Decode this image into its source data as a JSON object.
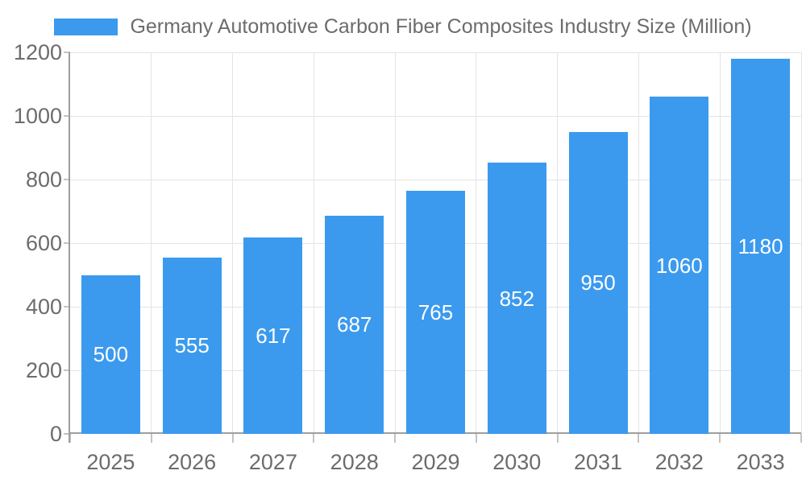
{
  "chart_data": {
    "type": "bar",
    "title": "Germany Automotive Carbon Fiber Composites Industry Size (Million)",
    "legend_position": "top-center",
    "categories": [
      "2025",
      "2026",
      "2027",
      "2028",
      "2029",
      "2030",
      "2031",
      "2032",
      "2033"
    ],
    "values": [
      500,
      555,
      617,
      687,
      765,
      852,
      950,
      1060,
      1180
    ],
    "value_labels": [
      "500",
      "555",
      "617",
      "687",
      "765",
      "852",
      "950",
      "1060",
      "1180"
    ],
    "xlabel": "",
    "ylabel": "",
    "ylim": [
      0,
      1200
    ],
    "yticks": [
      0,
      200,
      400,
      600,
      800,
      1000,
      1200
    ],
    "grid": true,
    "colors": {
      "bar": "#3B9AEE",
      "bar_label": "#FFFFFF",
      "grid": "#E4E4E4",
      "axis": "#9E9E9E",
      "tick": "#C4C4C4",
      "text": "#6C6C6C",
      "background": "#FFFFFF"
    }
  }
}
